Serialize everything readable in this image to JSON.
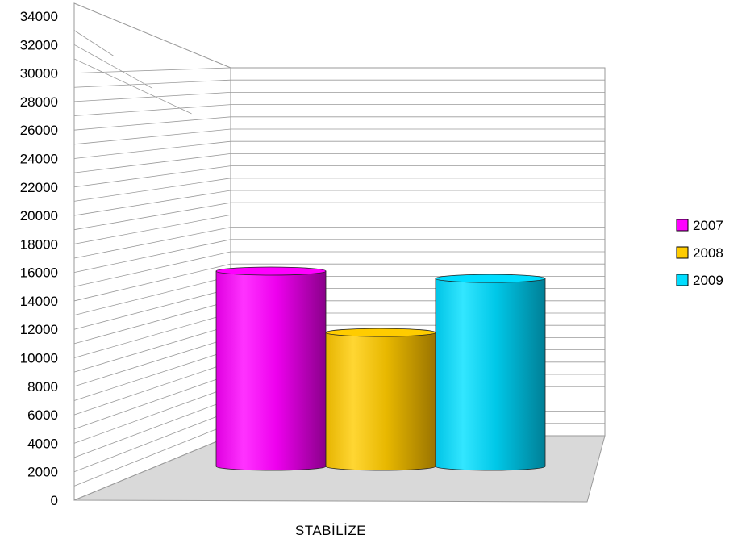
{
  "chart_data": {
    "type": "bar",
    "style": "3d-cylinder",
    "categories": [
      "STABİLİZE"
    ],
    "series": [
      {
        "name": "2007",
        "values": [
          15900
        ],
        "color": "#ff00ff"
      },
      {
        "name": "2008",
        "values": [
          10900
        ],
        "color": "#ffcc00"
      },
      {
        "name": "2009",
        "values": [
          15300
        ],
        "color": "#00ddff"
      }
    ],
    "ylim": [
      0,
      34000
    ],
    "yticks": [
      "0",
      "2000",
      "4000",
      "6000",
      "8000",
      "10000",
      "12000",
      "14000",
      "16000",
      "18000",
      "20000",
      "22000",
      "24000",
      "26000",
      "28000",
      "30000",
      "32000",
      "34000"
    ],
    "grid": true,
    "legend_position": "right"
  }
}
